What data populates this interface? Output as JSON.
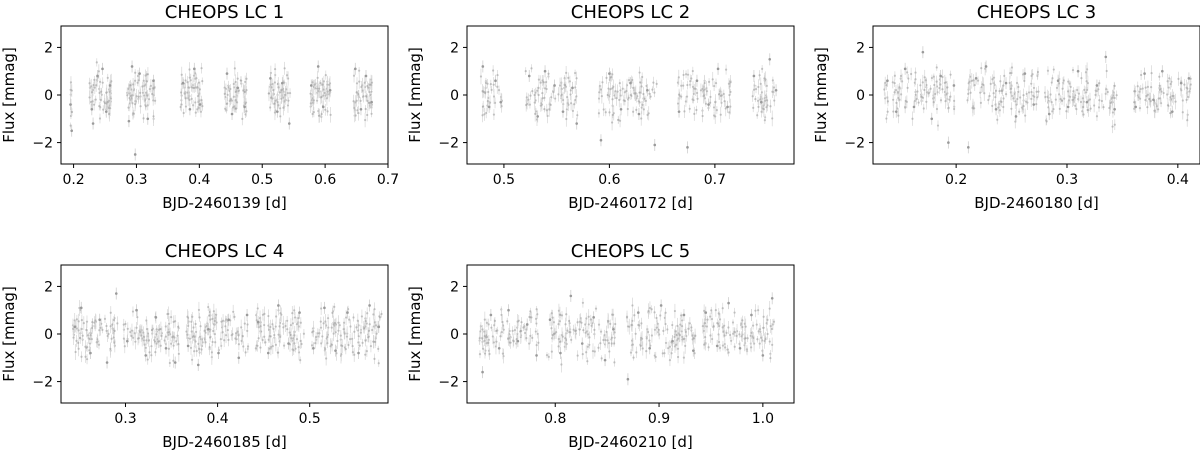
{
  "chart_data": [
    {
      "type": "scatter",
      "title": "CHEOPS LC 1",
      "xlabel": "BJD-2460139 [d]",
      "ylabel": "Flux [mmag]",
      "xlim": [
        0.18,
        0.7
      ],
      "ylim": [
        -2.9,
        2.9
      ],
      "xticks": [
        0.2,
        0.3,
        0.4,
        0.5,
        0.6,
        0.7
      ],
      "xtick_labels": [
        "0.2",
        "0.3",
        "0.4",
        "0.5",
        "0.6",
        "0.7"
      ],
      "yticks": [
        -2,
        0,
        2
      ],
      "ytick_labels": [
        "−2",
        "0",
        "2"
      ],
      "visits": [
        [
          0.195,
          0.198
        ],
        [
          0.225,
          0.26
        ],
        [
          0.285,
          0.33
        ],
        [
          0.37,
          0.405
        ],
        [
          0.44,
          0.475
        ],
        [
          0.51,
          0.545
        ],
        [
          0.575,
          0.61
        ],
        [
          0.645,
          0.675
        ]
      ],
      "series": [
        {
          "values": [
            [
              0.195,
              -0.4
            ],
            [
              0.197,
              -1.5
            ],
            [
              0.229,
              -0.6
            ],
            [
              0.231,
              -1.2
            ],
            [
              0.238,
              0.8
            ],
            [
              0.246,
              1.1
            ],
            [
              0.252,
              -0.7
            ],
            [
              0.258,
              0.4
            ],
            [
              0.288,
              -1.1
            ],
            [
              0.293,
              1.2
            ],
            [
              0.298,
              -2.5
            ],
            [
              0.305,
              0.9
            ],
            [
              0.318,
              -1.0
            ],
            [
              0.327,
              0.6
            ],
            [
              0.374,
              0.5
            ],
            [
              0.385,
              -0.6
            ],
            [
              0.392,
              1.1
            ],
            [
              0.401,
              -0.4
            ],
            [
              0.444,
              0.9
            ],
            [
              0.452,
              -0.8
            ],
            [
              0.461,
              0.3
            ],
            [
              0.472,
              -0.5
            ],
            [
              0.513,
              0.7
            ],
            [
              0.524,
              -0.7
            ],
            [
              0.532,
              0.5
            ],
            [
              0.543,
              -1.2
            ],
            [
              0.578,
              0.4
            ],
            [
              0.589,
              1.2
            ],
            [
              0.597,
              -0.5
            ],
            [
              0.608,
              0.2
            ],
            [
              0.648,
              1.1
            ],
            [
              0.657,
              -0.6
            ],
            [
              0.665,
              0.8
            ],
            [
              0.674,
              -0.3
            ]
          ]
        }
      ]
    },
    {
      "type": "scatter",
      "title": "CHEOPS LC 2",
      "xlabel": "BJD-2460172 [d]",
      "ylabel": "Flux [mmag]",
      "xlim": [
        0.465,
        0.775
      ],
      "ylim": [
        -2.9,
        2.9
      ],
      "xticks": [
        0.5,
        0.6,
        0.7
      ],
      "xtick_labels": [
        "0.5",
        "0.6",
        "0.7"
      ],
      "yticks": [
        -2,
        0,
        2
      ],
      "ytick_labels": [
        "−2",
        "0",
        "2"
      ],
      "visits": [
        [
          0.478,
          0.498
        ],
        [
          0.52,
          0.57
        ],
        [
          0.59,
          0.645
        ],
        [
          0.665,
          0.715
        ],
        [
          0.735,
          0.76
        ]
      ],
      "series": [
        {
          "values": [
            [
              0.48,
              1.2
            ],
            [
              0.486,
              -0.5
            ],
            [
              0.492,
              0.6
            ],
            [
              0.497,
              -0.3
            ],
            [
              0.524,
              0.8
            ],
            [
              0.532,
              -0.9
            ],
            [
              0.539,
              1.0
            ],
            [
              0.548,
              0.4
            ],
            [
              0.556,
              -0.7
            ],
            [
              0.565,
              0.3
            ],
            [
              0.569,
              -1.2
            ],
            [
              0.592,
              -1.9
            ],
            [
              0.6,
              0.9
            ],
            [
              0.611,
              -0.6
            ],
            [
              0.62,
              0.5
            ],
            [
              0.628,
              -0.8
            ],
            [
              0.636,
              0.2
            ],
            [
              0.643,
              -2.1
            ],
            [
              0.666,
              -0.7
            ],
            [
              0.674,
              -2.2
            ],
            [
              0.683,
              0.6
            ],
            [
              0.694,
              -0.4
            ],
            [
              0.703,
              1.1
            ],
            [
              0.712,
              -0.5
            ],
            [
              0.737,
              0.8
            ],
            [
              0.744,
              -0.3
            ],
            [
              0.752,
              1.5
            ],
            [
              0.758,
              0.2
            ]
          ]
        }
      ]
    },
    {
      "type": "scatter",
      "title": "CHEOPS LC 3",
      "xlabel": "BJD-2460180 [d]",
      "ylabel": "Flux [mmag]",
      "xlim": [
        0.125,
        0.42
      ],
      "ylim": [
        -2.9,
        2.9
      ],
      "xticks": [
        0.2,
        0.3,
        0.4
      ],
      "xtick_labels": [
        "0.2",
        "0.3",
        "0.4"
      ],
      "yticks": [
        -2,
        0,
        2
      ],
      "ytick_labels": [
        "−2",
        "0",
        "2"
      ],
      "visits": [
        [
          0.135,
          0.2
        ],
        [
          0.21,
          0.275
        ],
        [
          0.28,
          0.345
        ],
        [
          0.36,
          0.412
        ]
      ],
      "series": [
        {
          "values": [
            [
              0.138,
              0.6
            ],
            [
              0.146,
              -0.7
            ],
            [
              0.154,
              1.1
            ],
            [
              0.162,
              -0.5
            ],
            [
              0.17,
              1.8
            ],
            [
              0.178,
              -1.0
            ],
            [
              0.186,
              0.8
            ],
            [
              0.193,
              -2.0
            ],
            [
              0.198,
              0.4
            ],
            [
              0.211,
              -2.2
            ],
            [
              0.218,
              0.7
            ],
            [
              0.227,
              1.2
            ],
            [
              0.236,
              -0.6
            ],
            [
              0.245,
              0.5
            ],
            [
              0.254,
              -0.9
            ],
            [
              0.262,
              0.9
            ],
            [
              0.27,
              -0.4
            ],
            [
              0.284,
              -0.8
            ],
            [
              0.292,
              0.6
            ],
            [
              0.301,
              -0.5
            ],
            [
              0.31,
              1.0
            ],
            [
              0.318,
              -0.3
            ],
            [
              0.327,
              0.4
            ],
            [
              0.335,
              1.6
            ],
            [
              0.343,
              -0.6
            ],
            [
              0.362,
              -0.5
            ],
            [
              0.37,
              0.9
            ],
            [
              0.378,
              -0.2
            ],
            [
              0.386,
              1.0
            ],
            [
              0.395,
              -0.7
            ],
            [
              0.403,
              0.5
            ],
            [
              0.41,
              0.7
            ]
          ]
        }
      ]
    },
    {
      "type": "scatter",
      "title": "CHEOPS LC 4",
      "xlabel": "BJD-2460185 [d]",
      "ylabel": "Flux [mmag]",
      "xlim": [
        0.23,
        0.585
      ],
      "ylim": [
        -2.9,
        2.9
      ],
      "xticks": [
        0.3,
        0.4,
        0.5
      ],
      "xtick_labels": [
        "0.3",
        "0.4",
        "0.5"
      ],
      "yticks": [
        -2,
        0,
        2
      ],
      "ytick_labels": [
        "−2",
        "0",
        "2"
      ],
      "visits": [
        [
          0.243,
          0.293
        ],
        [
          0.298,
          0.358
        ],
        [
          0.365,
          0.435
        ],
        [
          0.44,
          0.495
        ],
        [
          0.5,
          0.578
        ]
      ],
      "series": [
        {
          "values": [
            [
              0.245,
              0.3
            ],
            [
              0.252,
              1.1
            ],
            [
              0.262,
              -0.8
            ],
            [
              0.272,
              0.6
            ],
            [
              0.28,
              -1.2
            ],
            [
              0.29,
              1.7
            ],
            [
              0.302,
              -0.3
            ],
            [
              0.312,
              1.0
            ],
            [
              0.322,
              -0.9
            ],
            [
              0.333,
              0.7
            ],
            [
              0.344,
              -0.6
            ],
            [
              0.354,
              -1.2
            ],
            [
              0.368,
              -0.5
            ],
            [
              0.379,
              -1.3
            ],
            [
              0.39,
              0.2
            ],
            [
              0.401,
              -0.8
            ],
            [
              0.412,
              0.6
            ],
            [
              0.423,
              -1.0
            ],
            [
              0.432,
              0.8
            ],
            [
              0.444,
              0.5
            ],
            [
              0.455,
              -0.8
            ],
            [
              0.466,
              1.2
            ],
            [
              0.477,
              -0.4
            ],
            [
              0.489,
              0.9
            ],
            [
              0.504,
              -0.6
            ],
            [
              0.516,
              1.1
            ],
            [
              0.528,
              -0.7
            ],
            [
              0.541,
              0.9
            ],
            [
              0.553,
              -0.8
            ],
            [
              0.565,
              1.2
            ],
            [
              0.575,
              0.3
            ]
          ]
        }
      ]
    },
    {
      "type": "scatter",
      "title": "CHEOPS LC 5",
      "xlabel": "BJD-2460210 [d]",
      "ylabel": "Flux [mmag]",
      "xlim": [
        0.715,
        1.03
      ],
      "ylim": [
        -2.9,
        2.9
      ],
      "xticks": [
        0.8,
        0.9,
        1.0
      ],
      "xtick_labels": [
        "0.8",
        "0.9",
        "1.0"
      ],
      "yticks": [
        -2,
        0,
        2
      ],
      "ytick_labels": [
        "−2",
        "0",
        "2"
      ],
      "visits": [
        [
          0.727,
          0.785
        ],
        [
          0.792,
          0.858
        ],
        [
          0.868,
          0.935
        ],
        [
          0.942,
          1.012
        ]
      ],
      "series": [
        {
          "values": [
            [
              0.73,
              -1.6
            ],
            [
              0.738,
              0.8
            ],
            [
              0.746,
              -0.6
            ],
            [
              0.755,
              1.0
            ],
            [
              0.764,
              -0.3
            ],
            [
              0.773,
              0.4
            ],
            [
              0.782,
              -0.9
            ],
            [
              0.795,
              0.6
            ],
            [
              0.805,
              -0.8
            ],
            [
              0.815,
              1.6
            ],
            [
              0.826,
              -0.4
            ],
            [
              0.837,
              0.7
            ],
            [
              0.848,
              -1.1
            ],
            [
              0.856,
              0.2
            ],
            [
              0.87,
              -1.9
            ],
            [
              0.88,
              0.9
            ],
            [
              0.891,
              -0.6
            ],
            [
              0.902,
              1.2
            ],
            [
              0.913,
              -0.3
            ],
            [
              0.924,
              0.8
            ],
            [
              0.933,
              -0.7
            ],
            [
              0.945,
              0.9
            ],
            [
              0.956,
              -0.5
            ],
            [
              0.967,
              1.3
            ],
            [
              0.978,
              -0.6
            ],
            [
              0.989,
              0.8
            ],
            [
              1.0,
              -0.9
            ],
            [
              1.009,
              1.5
            ]
          ]
        }
      ]
    }
  ]
}
